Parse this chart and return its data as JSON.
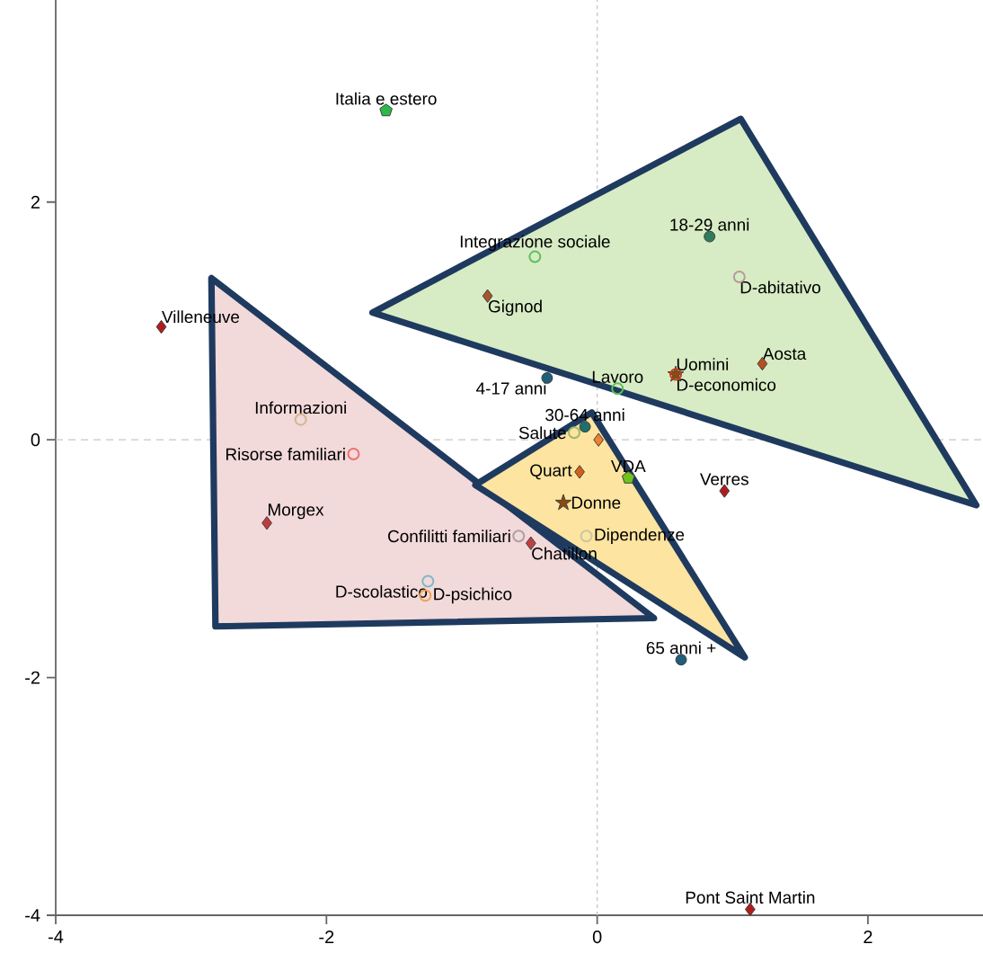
{
  "chart_data": {
    "type": "scatter",
    "xlim": [
      -4,
      2.85
    ],
    "ylim": [
      -4,
      3.7
    ],
    "xticks": [
      -4,
      -2,
      0,
      2
    ],
    "yticks": [
      -4,
      -2,
      0,
      2
    ],
    "grid": false,
    "ref_lines": [
      {
        "axis": "x",
        "value": 0,
        "color": "#c8c8c8",
        "line_style": "dotted"
      },
      {
        "axis": "y",
        "value": 0,
        "color": "#c8c8c8",
        "line_style": "dashed"
      }
    ],
    "series": [
      {
        "type": "area",
        "color": "#f2d9da",
        "x": [
          -2.85,
          -2.82,
          0.42
        ],
        "values": [
          1.36,
          -1.57,
          -1.5
        ]
      },
      {
        "type": "area",
        "color": "#d7ecc4",
        "x": [
          -1.66,
          1.06,
          2.8
        ],
        "values": [
          1.07,
          2.7,
          -0.55
        ]
      },
      {
        "type": "area",
        "color": "#fde4a0",
        "x": [
          -0.9,
          -0.04,
          1.09
        ],
        "values": [
          -0.38,
          0.23,
          -1.83
        ]
      },
      {
        "name": "Italia e estero",
        "color": "#2db84a",
        "x": [
          -1.56
        ],
        "values": [
          2.77
        ]
      },
      {
        "name": "Villeneuve",
        "marker": "diamond",
        "color": "#b01c1c",
        "x": [
          -3.22
        ],
        "values": [
          0.95
        ]
      },
      {
        "name": "Gignod",
        "marker": "diamond",
        "color": "#a8542a",
        "x": [
          -0.81
        ],
        "values": [
          1.21
        ]
      },
      {
        "name": "Integrazione sociale",
        "marker": "open circle",
        "color": "#5cbf5c",
        "x": [
          -0.46
        ],
        "values": [
          1.54
        ]
      },
      {
        "name": "18-29 anni",
        "marker": "circle",
        "color": "#2e7d5e",
        "x": [
          0.83
        ],
        "values": [
          1.71
        ]
      },
      {
        "name": "D-abitativo",
        "marker": "open circle",
        "color": "#b59a9e",
        "x": [
          1.05
        ],
        "values": [
          1.37
        ]
      },
      {
        "name": "Aosta",
        "marker": "diamond",
        "color": "#b5501e",
        "x": [
          1.22
        ],
        "values": [
          0.64
        ]
      },
      {
        "name": "Uomini",
        "marker": "star",
        "color": "#8a4a10",
        "x": [
          0.58
        ],
        "values": [
          0.55
        ]
      },
      {
        "name": "D-economico",
        "marker": "open circle",
        "color": "#c04020",
        "x": [
          0.58
        ],
        "values": [
          0.55
        ]
      },
      {
        "name": "Lavoro",
        "marker": "open circle",
        "color": "#5cbf5c",
        "x": [
          0.15
        ],
        "values": [
          0.43
        ]
      },
      {
        "name": "4-17 anni",
        "marker": "circle",
        "color": "#1f5f7a",
        "x": [
          -0.37
        ],
        "values": [
          0.52
        ]
      },
      {
        "name": "Salute",
        "marker": "open circle",
        "color": "#9cba6a",
        "x": [
          -0.17
        ],
        "values": [
          0.06
        ]
      },
      {
        "name": "30-64 anni",
        "marker": "circle",
        "color": "#1f6f6a",
        "x": [
          -0.09
        ],
        "values": [
          0.11
        ]
      },
      {
        "marker": "diamond",
        "color": "#f08030",
        "x": [
          0.01
        ],
        "values": [
          0.0
        ]
      },
      {
        "name": "VDA",
        "color": "#6fc21f",
        "x": [
          0.23
        ],
        "values": [
          -0.32
        ]
      },
      {
        "name": "Quart",
        "marker": "diamond",
        "color": "#d2601a",
        "x": [
          -0.13
        ],
        "values": [
          -0.27
        ]
      },
      {
        "name": "Donne",
        "marker": "star",
        "color": "#8a4a10",
        "x": [
          -0.25
        ],
        "values": [
          -0.53
        ]
      },
      {
        "name": "Dipendenze",
        "marker": "open circle",
        "color": "#c8c8a0",
        "x": [
          -0.08
        ],
        "values": [
          -0.81
        ]
      },
      {
        "name": "Verres",
        "marker": "diamond",
        "color": "#b01c1c",
        "x": [
          0.94
        ],
        "values": [
          -0.43
        ]
      },
      {
        "name": "Confilitti familiari",
        "marker": "open circle",
        "color": "#b0a0a0",
        "x": [
          -0.58
        ],
        "values": [
          -0.81
        ]
      },
      {
        "name": "Chatillon",
        "marker": "diamond",
        "color": "#c04040",
        "x": [
          -0.49
        ],
        "values": [
          -0.87
        ]
      },
      {
        "name": "Informazioni",
        "marker": "open circle",
        "color": "#d4b58a",
        "x": [
          -2.19
        ],
        "values": [
          0.17
        ]
      },
      {
        "name": "Risorse familiari",
        "marker": "open circle",
        "color": "#f07070",
        "x": [
          -1.8
        ],
        "values": [
          -0.12
        ]
      },
      {
        "name": "Morgex",
        "marker": "diamond",
        "color": "#c03c3c",
        "x": [
          -2.44
        ],
        "values": [
          -0.7
        ]
      },
      {
        "name": "D-scolastico",
        "marker": "open circle",
        "color": "#7fb8c8",
        "x": [
          -1.25
        ],
        "values": [
          -1.19
        ]
      },
      {
        "name": "D-psichico",
        "marker": "open circle",
        "color": "#f0a050",
        "x": [
          -1.27
        ],
        "values": [
          -1.31
        ]
      },
      {
        "name": "65 anni +",
        "marker": "circle",
        "color": "#1f5f7a",
        "x": [
          0.62
        ],
        "values": [
          -1.85
        ]
      },
      {
        "name": "Pont Saint Martin",
        "marker": "diamond",
        "color": "#b01c1c",
        "x": [
          1.13
        ],
        "values": [
          -3.95
        ]
      }
    ]
  }
}
